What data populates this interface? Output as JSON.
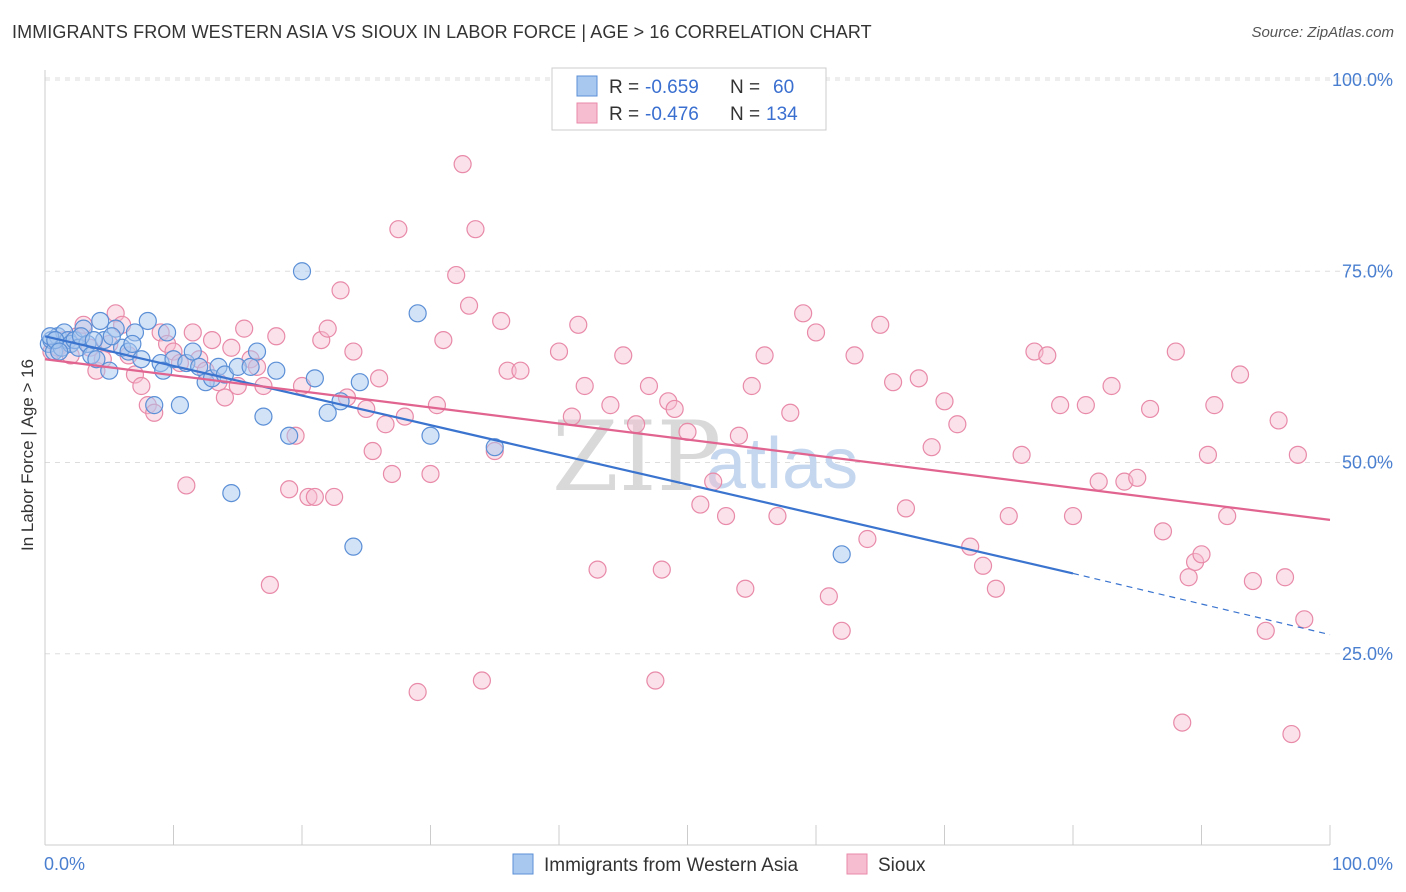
{
  "title": "IMMIGRANTS FROM WESTERN ASIA VS SIOUX IN LABOR FORCE | AGE > 16 CORRELATION CHART",
  "source": "Source: ZipAtlas.com",
  "watermark": {
    "zip": "ZIP",
    "atlas": "atlas"
  },
  "colors": {
    "blue_fill": "#a8c8f0",
    "blue_stroke": "#5b8fd6",
    "blue_line": "#3a74cf",
    "pink_fill": "#f6bcd0",
    "pink_stroke": "#e88aa8",
    "pink_line": "#e0648f",
    "tick_text": "#4a7fd0",
    "grid": "#dddddd"
  },
  "legend_top": {
    "rows": [
      {
        "r_label": "R = ",
        "r_value": "-0.659",
        "n_label": "N = ",
        "n_value": "60"
      },
      {
        "r_label": "R = ",
        "r_value": "-0.476",
        "n_label": "N = ",
        "n_value": "134"
      }
    ]
  },
  "legend_bottom": {
    "items": [
      "Immigrants from Western Asia",
      "Sioux"
    ]
  },
  "chart_data": {
    "type": "scatter",
    "title": "IMMIGRANTS FROM WESTERN ASIA VS SIOUX IN LABOR FORCE | AGE > 16 CORRELATION CHART",
    "xlabel": "",
    "ylabel": "In Labor Force | Age > 16",
    "xlim": [
      0,
      100
    ],
    "ylim": [
      0,
      102
    ],
    "x_tick_labels": [
      "0.0%",
      "100.0%"
    ],
    "y_tick_labels": [
      "25.0%",
      "50.0%",
      "75.0%",
      "100.0%"
    ],
    "y_ticks": [
      25,
      50,
      75,
      100
    ],
    "grid": true,
    "legend_position": "top-center",
    "series": [
      {
        "name": "Immigrants from Western Asia",
        "color": "#a8c8f0",
        "r": -0.659,
        "n": 60,
        "trend": {
          "x0": 0,
          "y0": 66.5,
          "x1": 80,
          "y1": 35.5,
          "dash_to_x": 100,
          "dash_to_y": 27.5
        },
        "points": [
          [
            0.3,
            65.5
          ],
          [
            0.5,
            66
          ],
          [
            0.7,
            64.5
          ],
          [
            1,
            66.5
          ],
          [
            1.3,
            65
          ],
          [
            1.5,
            67
          ],
          [
            1.8,
            66
          ],
          [
            2,
            65.5
          ],
          [
            2.3,
            66
          ],
          [
            2.6,
            65
          ],
          [
            3,
            67.5
          ],
          [
            3.3,
            65.5
          ],
          [
            3.6,
            64
          ],
          [
            4,
            63.5
          ],
          [
            4.3,
            68.5
          ],
          [
            4.6,
            66
          ],
          [
            5,
            62
          ],
          [
            5.5,
            67.5
          ],
          [
            6,
            65
          ],
          [
            6.5,
            64.5
          ],
          [
            7,
            67
          ],
          [
            7.5,
            63.5
          ],
          [
            8,
            68.5
          ],
          [
            8.5,
            57.5
          ],
          [
            9,
            63
          ],
          [
            9.5,
            67
          ],
          [
            10,
            63.5
          ],
          [
            10.5,
            57.5
          ],
          [
            11,
            63
          ],
          [
            11.5,
            64.5
          ],
          [
            12,
            62.5
          ],
          [
            12.5,
            60.5
          ],
          [
            13,
            61
          ],
          [
            13.5,
            62.5
          ],
          [
            14,
            61.5
          ],
          [
            14.5,
            46
          ],
          [
            15,
            62.5
          ],
          [
            16,
            62.5
          ],
          [
            16.5,
            64.5
          ],
          [
            17,
            56
          ],
          [
            18,
            62
          ],
          [
            19,
            53.5
          ],
          [
            20,
            75
          ],
          [
            21,
            61
          ],
          [
            22,
            56.5
          ],
          [
            23,
            58
          ],
          [
            24,
            39
          ],
          [
            24.5,
            60.5
          ],
          [
            29,
            69.5
          ],
          [
            30,
            53.5
          ],
          [
            35,
            52
          ],
          [
            0.4,
            66.5
          ],
          [
            0.8,
            66
          ],
          [
            1.1,
            64.5
          ],
          [
            2.8,
            66.5
          ],
          [
            3.8,
            66
          ],
          [
            5.2,
            66.5
          ],
          [
            6.8,
            65.5
          ],
          [
            9.2,
            62
          ],
          [
            62,
            38
          ]
        ]
      },
      {
        "name": "Sioux",
        "color": "#f6bcd0",
        "r": -0.476,
        "n": 134,
        "trend": {
          "x0": 0,
          "y0": 63.5,
          "x1": 100,
          "y1": 42.5
        },
        "points": [
          [
            0.5,
            64.5
          ],
          [
            1,
            65
          ],
          [
            1.5,
            66
          ],
          [
            2,
            64
          ],
          [
            2.5,
            66.5
          ],
          [
            3,
            68
          ],
          [
            3.5,
            65
          ],
          [
            4,
            62
          ],
          [
            4.5,
            63.5
          ],
          [
            5,
            65.5
          ],
          [
            5.5,
            69.5
          ],
          [
            6,
            68
          ],
          [
            6.5,
            64
          ],
          [
            7,
            61.5
          ],
          [
            7.5,
            60
          ],
          [
            8,
            57.5
          ],
          [
            8.5,
            56.5
          ],
          [
            9,
            67
          ],
          [
            9.5,
            65.5
          ],
          [
            10,
            64.5
          ],
          [
            10.5,
            63
          ],
          [
            11,
            47
          ],
          [
            11.5,
            67
          ],
          [
            12,
            63.5
          ],
          [
            12.5,
            62
          ],
          [
            13,
            66
          ],
          [
            13.5,
            60.5
          ],
          [
            14,
            58.5
          ],
          [
            14.5,
            65
          ],
          [
            15,
            60
          ],
          [
            15.5,
            67.5
          ],
          [
            16,
            63.5
          ],
          [
            16.5,
            62.5
          ],
          [
            17,
            60
          ],
          [
            17.5,
            34
          ],
          [
            18,
            66.5
          ],
          [
            19,
            46.5
          ],
          [
            19.5,
            53.5
          ],
          [
            20,
            60
          ],
          [
            20.5,
            45.5
          ],
          [
            21,
            45.5
          ],
          [
            21.5,
            66
          ],
          [
            22,
            67.5
          ],
          [
            22.5,
            45.5
          ],
          [
            23,
            72.5
          ],
          [
            23.5,
            58.5
          ],
          [
            24,
            64.5
          ],
          [
            25,
            57
          ],
          [
            25.5,
            51.5
          ],
          [
            26,
            61
          ],
          [
            26.5,
            55
          ],
          [
            27,
            48.5
          ],
          [
            27.5,
            80.5
          ],
          [
            28,
            56
          ],
          [
            29,
            20
          ],
          [
            30,
            48.5
          ],
          [
            30.5,
            57.5
          ],
          [
            31,
            66
          ],
          [
            32,
            74.5
          ],
          [
            32.5,
            89
          ],
          [
            33,
            70.5
          ],
          [
            33.5,
            80.5
          ],
          [
            34,
            21.5
          ],
          [
            35,
            51.5
          ],
          [
            35.5,
            68.5
          ],
          [
            36,
            62
          ],
          [
            37,
            62
          ],
          [
            40,
            64.5
          ],
          [
            41,
            56
          ],
          [
            41.5,
            68
          ],
          [
            42,
            60
          ],
          [
            43,
            36
          ],
          [
            44,
            57.5
          ],
          [
            45,
            64
          ],
          [
            46,
            55
          ],
          [
            47,
            60
          ],
          [
            47.5,
            21.5
          ],
          [
            48,
            36
          ],
          [
            48.5,
            58
          ],
          [
            49,
            57
          ],
          [
            50,
            54
          ],
          [
            51,
            44.5
          ],
          [
            52,
            47.5
          ],
          [
            53,
            43
          ],
          [
            54,
            53.5
          ],
          [
            54.5,
            33.5
          ],
          [
            55,
            60
          ],
          [
            56,
            64
          ],
          [
            57,
            43
          ],
          [
            58,
            56.5
          ],
          [
            59,
            69.5
          ],
          [
            60,
            67
          ],
          [
            61,
            32.5
          ],
          [
            62,
            28
          ],
          [
            63,
            64
          ],
          [
            64,
            40
          ],
          [
            65,
            68
          ],
          [
            66,
            60.5
          ],
          [
            67,
            44
          ],
          [
            68,
            61
          ],
          [
            69,
            52
          ],
          [
            70,
            58
          ],
          [
            71,
            55
          ],
          [
            72,
            39
          ],
          [
            73,
            36.5
          ],
          [
            74,
            33.5
          ],
          [
            75,
            43
          ],
          [
            76,
            51
          ],
          [
            77,
            64.5
          ],
          [
            78,
            64
          ],
          [
            79,
            57.5
          ],
          [
            80,
            43
          ],
          [
            81,
            57.5
          ],
          [
            82,
            47.5
          ],
          [
            83,
            60
          ],
          [
            84,
            47.5
          ],
          [
            85,
            48
          ],
          [
            86,
            57
          ],
          [
            87,
            41
          ],
          [
            88,
            64.5
          ],
          [
            88.5,
            16
          ],
          [
            89,
            35
          ],
          [
            89.5,
            37
          ],
          [
            90,
            38
          ],
          [
            90.5,
            51
          ],
          [
            91,
            57.5
          ],
          [
            92,
            43
          ],
          [
            93,
            61.5
          ],
          [
            94,
            34.5
          ],
          [
            95,
            28
          ],
          [
            96,
            55.5
          ],
          [
            96.5,
            35
          ],
          [
            97,
            14.5
          ],
          [
            97.5,
            51
          ],
          [
            98,
            29.5
          ]
        ]
      }
    ]
  }
}
